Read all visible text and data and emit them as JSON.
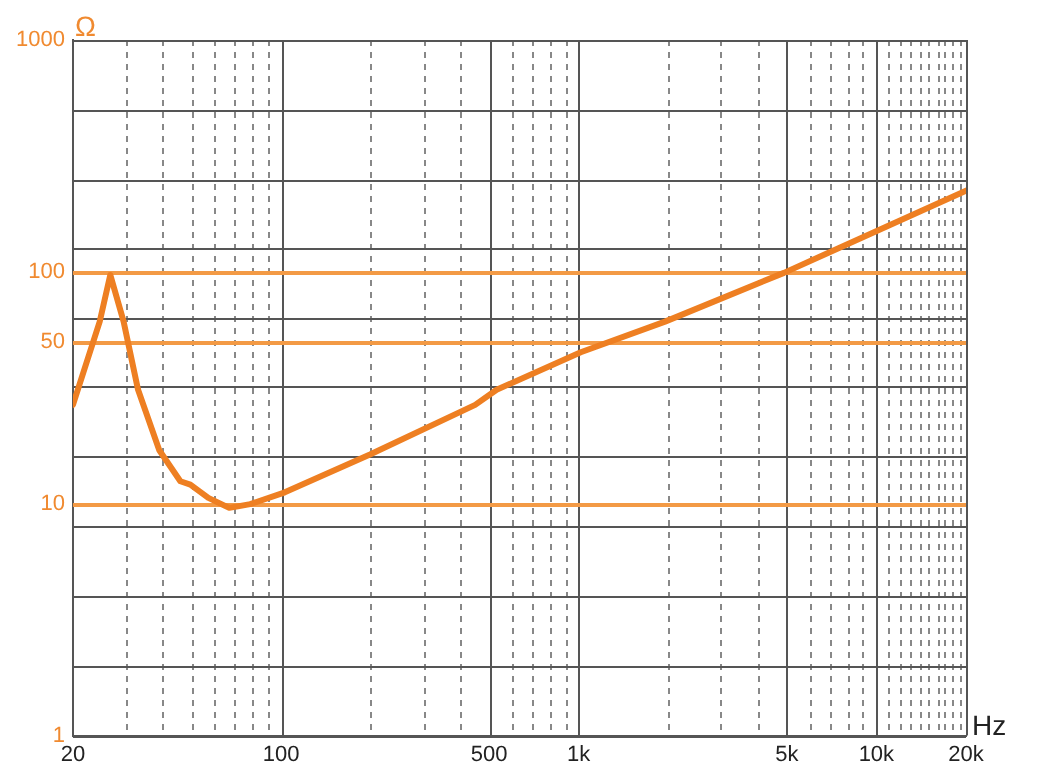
{
  "chart_data": {
    "type": "line",
    "xlabel": "Hz",
    "ylabel": "Ω",
    "log": "xy",
    "xlim": [
      20,
      20000
    ],
    "ylim": [
      1,
      1000
    ],
    "xticks": [
      20,
      {
        "value": 30,
        "label": null
      },
      {
        "value": 40,
        "label": null
      },
      {
        "value": 50,
        "label": null
      },
      {
        "value": 60,
        "label": null
      },
      {
        "value": 70,
        "label": null
      },
      {
        "value": 80,
        "label": null
      },
      {
        "value": 90,
        "label": null
      },
      100,
      {
        "value": 200,
        "label": null
      },
      {
        "value": 300,
        "label": null
      },
      {
        "value": 400,
        "label": null
      },
      500,
      {
        "value": 600,
        "label": null
      },
      {
        "value": 700,
        "label": null
      },
      {
        "value": 800,
        "label": null
      },
      {
        "value": 900,
        "label": null
      },
      {
        "value": 1000,
        "label": "1k"
      },
      {
        "value": 2000,
        "label": null
      },
      {
        "value": 3000,
        "label": null
      },
      {
        "value": 4000,
        "label": null
      },
      {
        "value": 5000,
        "label": "5k"
      },
      {
        "value": 6000,
        "label": null
      },
      {
        "value": 7000,
        "label": null
      },
      {
        "value": 8000,
        "label": null
      },
      {
        "value": 9000,
        "label": null
      },
      {
        "value": 10000,
        "label": "10k"
      },
      {
        "value": 11000,
        "label": null
      },
      {
        "value": 12000,
        "label": null
      },
      {
        "value": 13000,
        "label": null
      },
      {
        "value": 14000,
        "label": null
      },
      {
        "value": 15000,
        "label": null
      },
      {
        "value": 16000,
        "label": null
      },
      {
        "value": 17000,
        "label": null
      },
      {
        "value": 18000,
        "label": null
      },
      {
        "value": 19000,
        "label": null
      },
      {
        "value": 20000,
        "label": "20k"
      }
    ],
    "yticks": [
      1,
      {
        "value": 2,
        "label": null
      },
      {
        "value": 4,
        "label": null
      },
      {
        "value": 8,
        "label": null
      },
      10,
      {
        "value": 16,
        "label": null
      },
      {
        "value": 32,
        "label": null
      },
      50,
      {
        "value": 63,
        "label": null
      },
      100,
      {
        "value": 126,
        "label": null
      },
      {
        "value": 251,
        "label": null
      },
      {
        "value": 501,
        "label": null
      },
      1000
    ],
    "grid": true,
    "marker": "none",
    "line_style": "solid",
    "series": [
      {
        "color": "#ee7f22",
        "x": [
          20,
          24.6,
          26.7,
          29.6,
          33.1,
          39,
          45.9,
          49.6,
          57,
          67,
          78.8,
          103,
          199,
          449,
          530,
          1016,
          1950,
          4890,
          20000
        ],
        "values": [
          26.7,
          61,
          97,
          61,
          31,
          17,
          12.5,
          12.1,
          10.6,
          9.6,
          9.96,
          11.2,
          16.3,
          26.7,
          31,
          45,
          61,
          99,
          224
        ]
      }
    ]
  }
}
